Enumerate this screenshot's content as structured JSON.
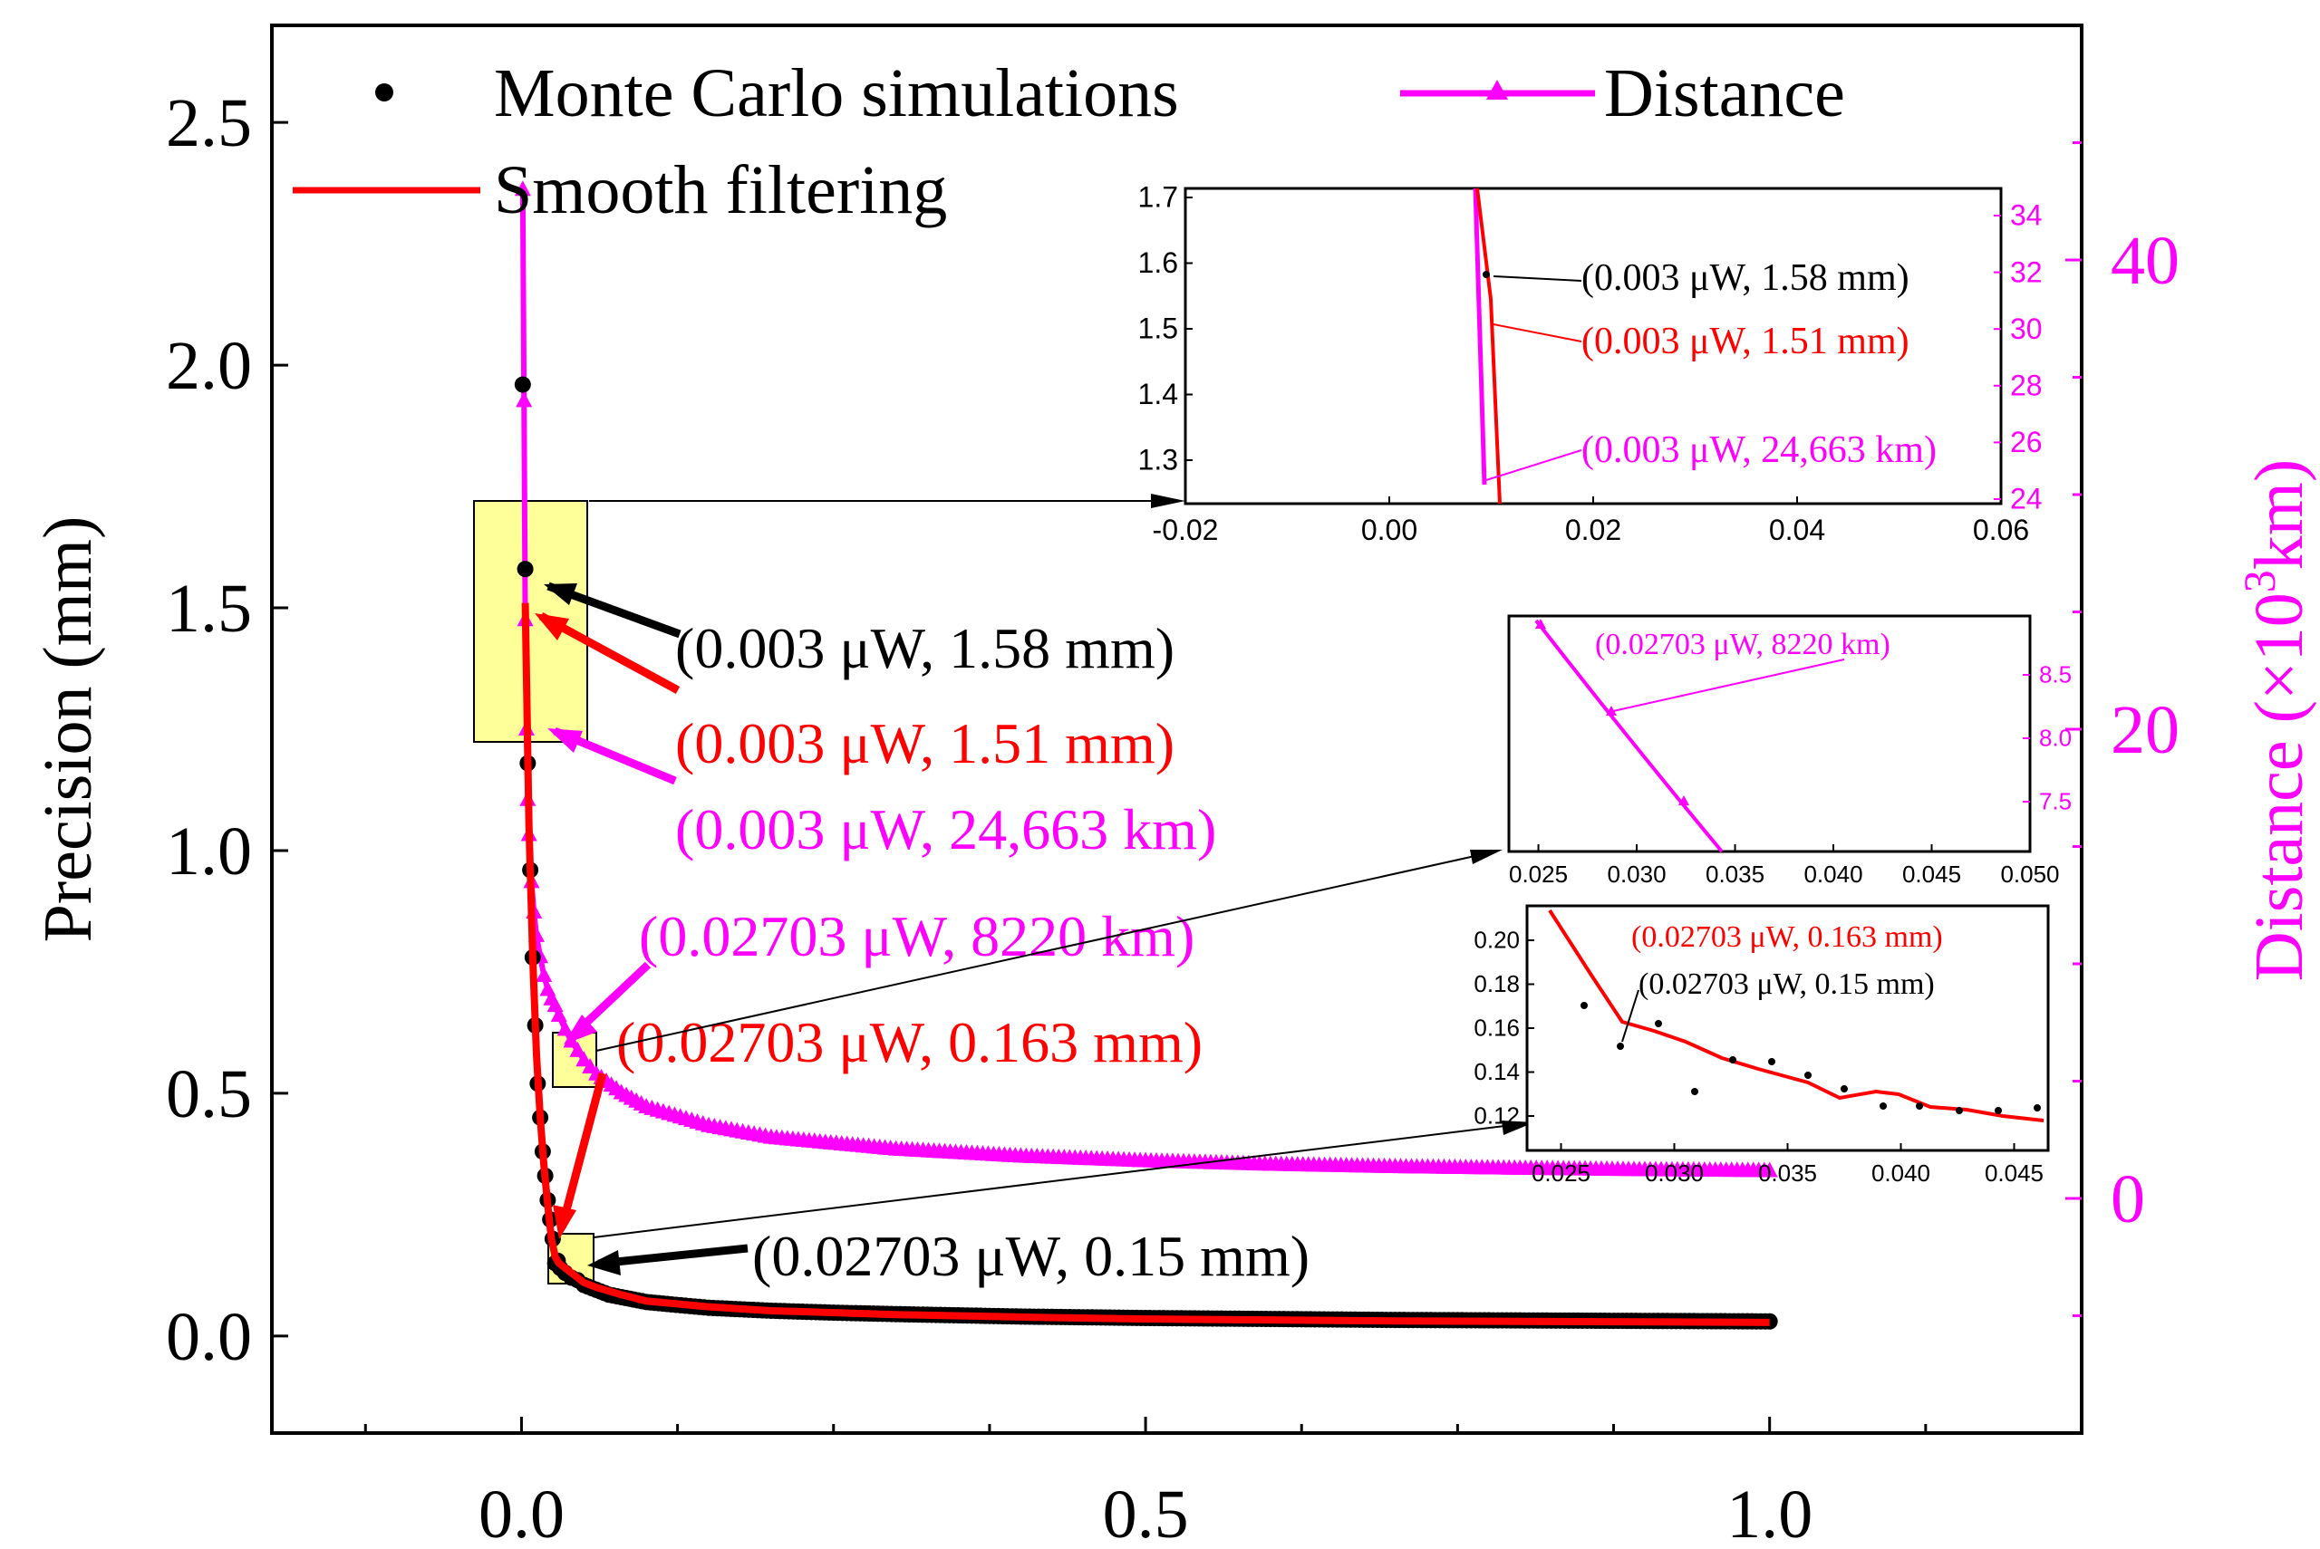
{
  "chart_data": {
    "type": "scatter",
    "xlabel": "",
    "ylabel": "Precision (mm)",
    "y2label_prefix": "Distance (×10",
    "y2label_sup": "3",
    "y2label_suffix": "km)",
    "xlim": [
      -0.2,
      1.25
    ],
    "ylim": [
      -0.2,
      2.7
    ],
    "y2lim": [
      -10,
      50
    ],
    "xticks": [
      "0.0",
      "0.5",
      "1.0"
    ],
    "xtick_values": [
      0,
      0.5,
      1.0
    ],
    "yticks": [
      "0.0",
      "0.5",
      "1.0",
      "1.5",
      "2.0",
      "2.5"
    ],
    "ytick_values": [
      0,
      0.5,
      1.0,
      1.5,
      2.0,
      2.5
    ],
    "y2ticks": [
      "0",
      "20",
      "40"
    ],
    "y2tick_values": [
      0,
      20,
      40
    ],
    "legend": {
      "mc": "Monte Carlo simulations",
      "smooth": "Smooth filtering",
      "distance": "Distance"
    },
    "colors": {
      "mc": "#000000",
      "smooth": "#ff0000",
      "distance": "#ff00ff",
      "box": "#ffff99"
    },
    "series": [
      {
        "name": "Monte Carlo simulations",
        "x": [
          0.001,
          0.003,
          0.005,
          0.007,
          0.009,
          0.011,
          0.013,
          0.015,
          0.017,
          0.019,
          0.021,
          0.023,
          0.025,
          0.027,
          0.029,
          0.031,
          0.035,
          0.04,
          0.045,
          0.05,
          0.06,
          0.07,
          0.08,
          0.1,
          0.12,
          0.15,
          0.2,
          0.25,
          0.3,
          0.4,
          0.5,
          0.6,
          0.7,
          0.8,
          0.9,
          1.0
        ],
        "y": [
          1.96,
          1.58,
          1.18,
          0.96,
          0.78,
          0.64,
          0.52,
          0.45,
          0.38,
          0.33,
          0.28,
          0.24,
          0.2,
          0.15,
          0.155,
          0.14,
          0.13,
          0.12,
          0.115,
          0.105,
          0.095,
          0.085,
          0.08,
          0.07,
          0.065,
          0.058,
          0.052,
          0.048,
          0.045,
          0.04,
          0.037,
          0.035,
          0.033,
          0.032,
          0.031,
          0.03
        ]
      },
      {
        "name": "Smooth filtering",
        "x": [
          0.003,
          0.006,
          0.009,
          0.012,
          0.015,
          0.018,
          0.021,
          0.024,
          0.027,
          0.03,
          0.035,
          0.04,
          0.045,
          0.05,
          0.06,
          0.08,
          0.1,
          0.15,
          0.2,
          0.3,
          0.4,
          0.5,
          0.6,
          0.7,
          0.8,
          0.9,
          1.0
        ],
        "y": [
          1.51,
          1.05,
          0.78,
          0.58,
          0.45,
          0.35,
          0.27,
          0.2,
          0.163,
          0.15,
          0.14,
          0.13,
          0.12,
          0.11,
          0.1,
          0.085,
          0.072,
          0.06,
          0.052,
          0.044,
          0.039,
          0.035,
          0.033,
          0.031,
          0.03,
          0.029,
          0.028
        ]
      },
      {
        "name": "Distance",
        "x": [
          0.001,
          0.002,
          0.003,
          0.004,
          0.005,
          0.006,
          0.008,
          0.01,
          0.012,
          0.015,
          0.018,
          0.021,
          0.024,
          0.027,
          0.03,
          0.035,
          0.04,
          0.05,
          0.06,
          0.08,
          0.1,
          0.15,
          0.2,
          0.3,
          0.4,
          0.5,
          0.6,
          0.7,
          0.8,
          0.9,
          1.0
        ],
        "y": [
          43,
          34,
          24.663,
          20,
          17,
          15.5,
          13.5,
          12.2,
          11.2,
          10.3,
          9.5,
          8.9,
          8.5,
          8.22,
          7.8,
          7.2,
          6.7,
          5.9,
          5.3,
          4.5,
          3.9,
          3.1,
          2.6,
          2.1,
          1.8,
          1.6,
          1.45,
          1.35,
          1.28,
          1.22,
          1.18
        ]
      }
    ],
    "annotations": {
      "a1": "(0.003 μW, 1.58 mm)",
      "a2": "(0.003 μW, 1.51 mm)",
      "a3": "(0.003 μW, 24,663 km)",
      "a4": "(0.02703 μW, 8220 km)",
      "a5": "(0.02703 μW, 0.163 mm)",
      "a6": "(0.02703 μW, 0.15 mm)"
    },
    "insets": {
      "top": {
        "xticks": [
          "-0.02",
          "0.00",
          "0.02",
          "0.04",
          "0.06"
        ],
        "yticks": [
          "1.3",
          "1.4",
          "1.5",
          "1.6",
          "1.7"
        ],
        "y2ticks": [
          "24",
          "26",
          "28",
          "30",
          "32",
          "34"
        ],
        "labels": [
          "(0.003 μW, 1.58 mm)",
          "(0.003 μW, 1.51 mm)",
          "(0.003 μW, 24,663 km)"
        ]
      },
      "middle": {
        "xticks": [
          "0.025",
          "0.030",
          "0.035",
          "0.040",
          "0.045",
          "0.050"
        ],
        "y2ticks": [
          "7.5",
          "8.0",
          "8.5"
        ],
        "label": "(0.02703 μW, 8220 km)"
      },
      "bottom": {
        "xticks": [
          "0.025",
          "0.030",
          "0.035",
          "0.040",
          "0.045"
        ],
        "yticks": [
          "0.12",
          "0.14",
          "0.16",
          "0.18",
          "0.20"
        ],
        "labels": [
          "(0.02703 μW, 0.163 mm)",
          "(0.02703 μW, 0.15 mm)"
        ]
      }
    }
  }
}
